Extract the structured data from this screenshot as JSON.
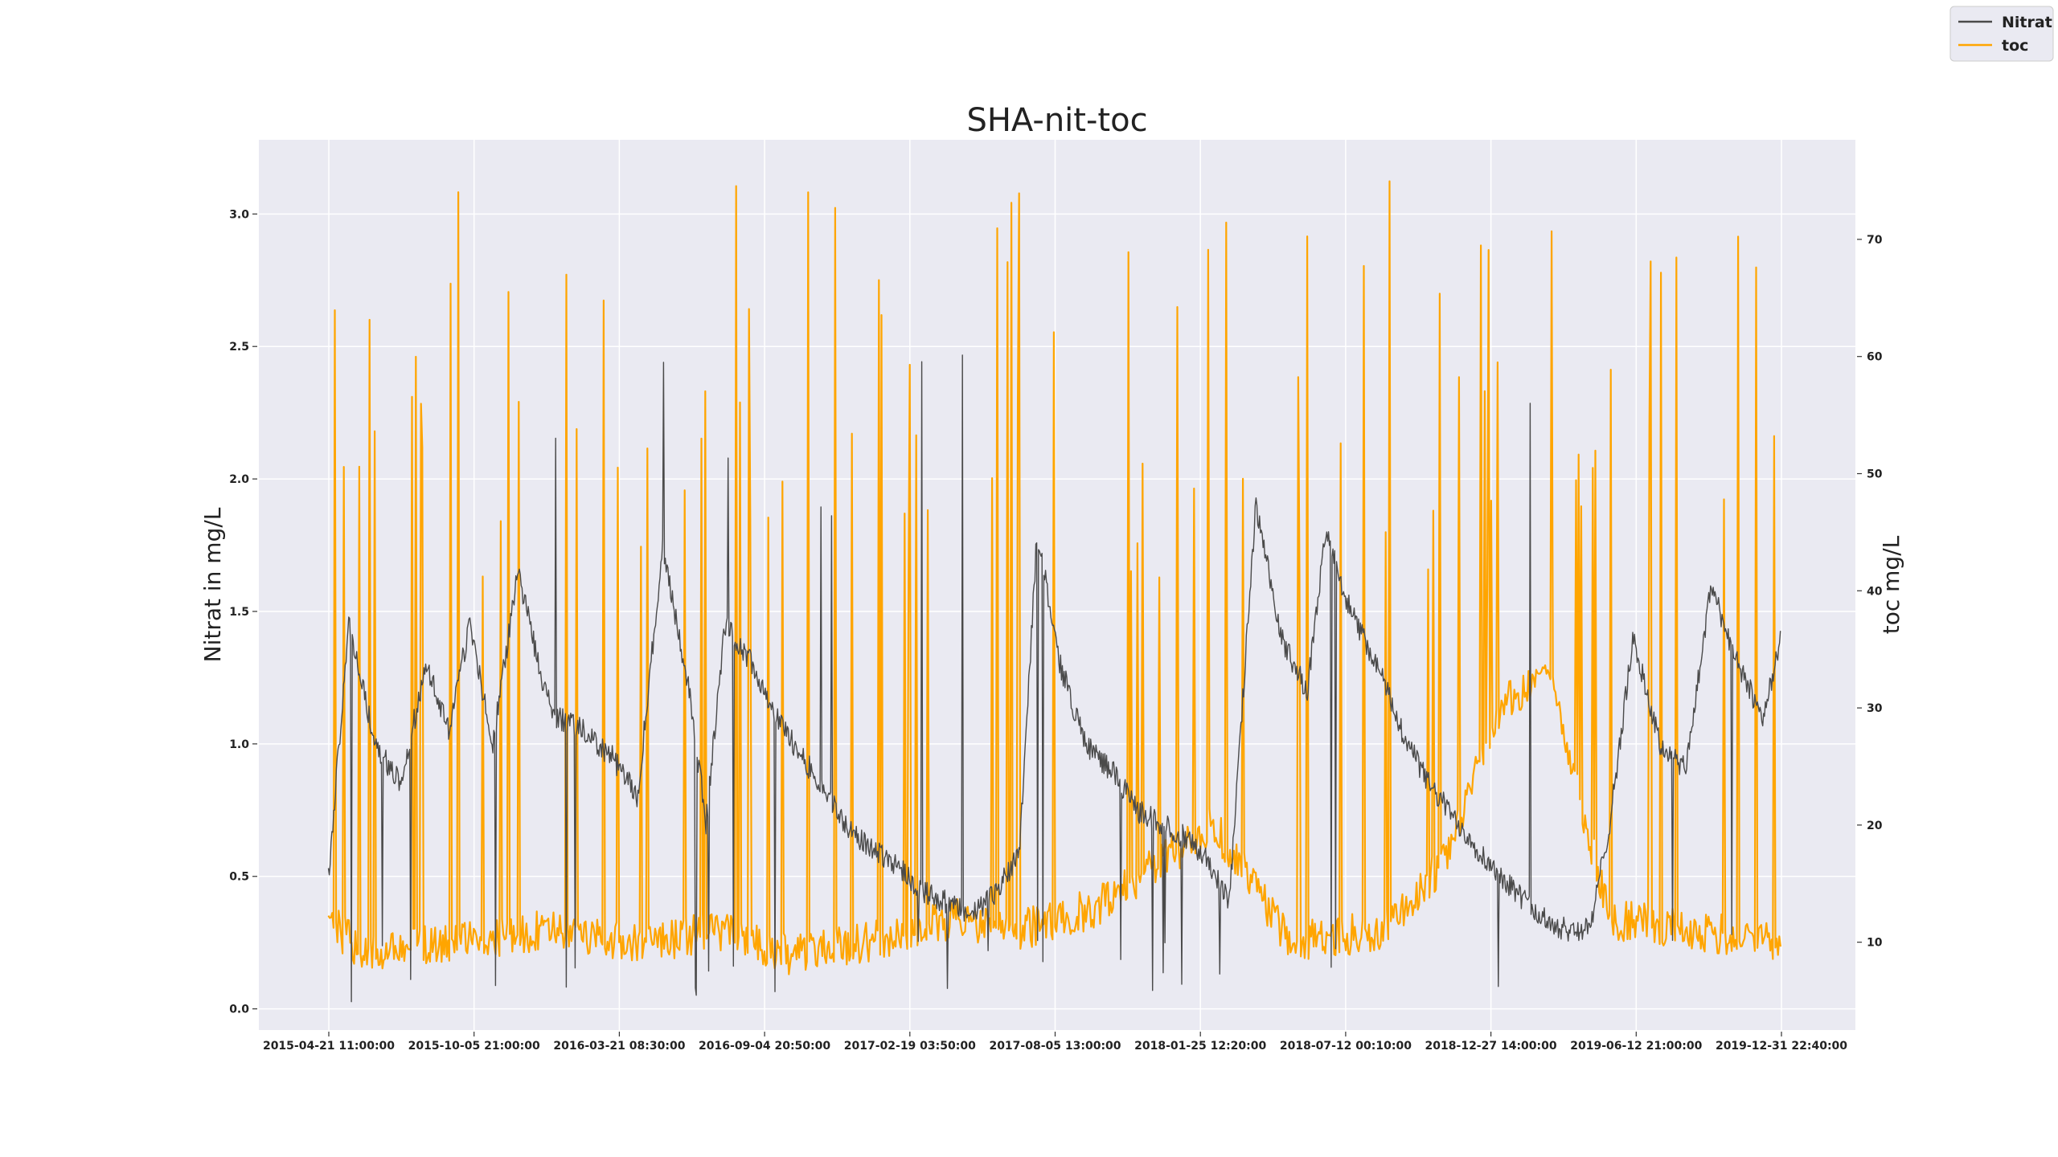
{
  "chart_data": {
    "type": "line",
    "title": "SHA-nit-toc",
    "ylabel_left": "Nitrat in mg/L",
    "ylabel_right": "toc mg/L",
    "grid": true,
    "legend_position": "top-right",
    "ylim_left": [
      -0.08,
      3.28
    ],
    "ylim_right": [
      2.5,
      78.5
    ],
    "yticks_left": [
      "0.0",
      "0.5",
      "1.0",
      "1.5",
      "2.0",
      "2.5",
      "3.0"
    ],
    "yticks_right": [
      "10",
      "20",
      "30",
      "40",
      "50",
      "60",
      "70"
    ],
    "x_ticks": [
      "2015-04-21 11:00:00",
      "2015-10-05 21:00:00",
      "2016-03-21 08:30:00",
      "2016-09-04 20:50:00",
      "2017-02-19 03:50:00",
      "2017-08-05 13:00:00",
      "2018-01-25 12:20:00",
      "2018-07-12 00:10:00",
      "2018-12-27 14:00:00",
      "2019-06-12 21:00:00",
      "2019-12-31 22:40:00"
    ],
    "series": [
      {
        "name": "Nitrat",
        "axis": "left",
        "color": "#4a4a4a",
        "x": [
          "2015-04-21",
          "2015-05-15",
          "2015-06-15",
          "2015-07-15",
          "2015-08-15",
          "2015-09-10",
          "2015-10-05",
          "2015-11-01",
          "2015-12-01",
          "2016-01-01",
          "2016-01-15",
          "2016-02-15",
          "2016-03-21",
          "2016-04-20",
          "2016-05-20",
          "2016-06-20",
          "2016-07-10",
          "2016-08-01",
          "2016-09-04",
          "2016-10-01",
          "2016-11-01",
          "2016-12-01",
          "2017-01-01",
          "2017-02-19",
          "2017-03-20",
          "2017-04-20",
          "2017-05-20",
          "2017-06-20",
          "2017-07-15",
          "2017-08-05",
          "2017-09-01",
          "2017-10-01",
          "2017-11-01",
          "2017-12-01",
          "2018-01-25",
          "2018-02-25",
          "2018-03-20",
          "2018-04-20",
          "2018-05-20",
          "2018-06-20",
          "2018-07-12",
          "2018-08-10",
          "2018-09-10",
          "2018-10-10",
          "2018-11-10",
          "2018-12-27",
          "2019-01-20",
          "2019-02-20",
          "2019-03-20",
          "2019-04-20",
          "2019-05-20",
          "2019-06-12",
          "2019-07-10",
          "2019-08-10",
          "2019-09-10",
          "2019-10-10",
          "2019-11-10",
          "2019-12-10",
          "2019-12-31"
        ],
        "values": [
          0.5,
          1.45,
          1.0,
          0.85,
          1.3,
          1.05,
          1.45,
          1.0,
          1.65,
          1.2,
          1.1,
          1.05,
          0.95,
          0.8,
          1.75,
          1.2,
          0.7,
          1.45,
          1.3,
          1.1,
          0.95,
          0.8,
          0.65,
          0.55,
          0.45,
          0.4,
          0.35,
          0.45,
          0.6,
          1.8,
          1.3,
          1.0,
          0.9,
          0.75,
          0.65,
          0.55,
          0.4,
          1.9,
          1.4,
          1.2,
          1.8,
          1.5,
          1.3,
          1.05,
          0.85,
          0.65,
          0.55,
          0.45,
          0.35,
          0.3,
          0.3,
          0.7,
          1.4,
          1.0,
          0.9,
          1.6,
          1.3,
          1.1,
          1.4
        ]
      },
      {
        "name": "toc",
        "axis": "right",
        "color": "#ffa500",
        "x": [
          "2015-04-21",
          "2015-06-01",
          "2015-09-01",
          "2016-01-01",
          "2016-05-01",
          "2016-08-01",
          "2016-10-15",
          "2017-01-15",
          "2017-05-01",
          "2017-07-15",
          "2017-10-15",
          "2018-01-01",
          "2018-03-01",
          "2018-06-01",
          "2018-09-15",
          "2018-12-01",
          "2019-02-01",
          "2019-04-01",
          "2019-06-12",
          "2019-09-15",
          "2019-12-31"
        ],
        "values": [
          12,
          9,
          10,
          11,
          10,
          11,
          9,
          10,
          12,
          11,
          13,
          17,
          20,
          10,
          11,
          17,
          30,
          33,
          12,
          11,
          10
        ]
      }
    ]
  },
  "legend": {
    "items": [
      {
        "label": "Nitrat",
        "color": "#4a4a4a"
      },
      {
        "label": "toc",
        "color": "#ffa500"
      }
    ]
  }
}
